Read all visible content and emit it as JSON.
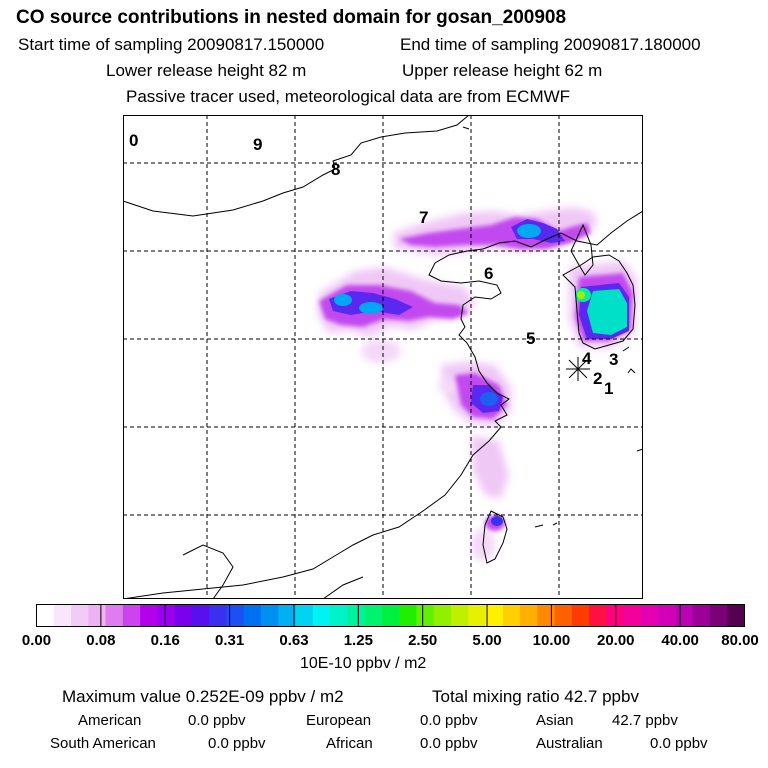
{
  "title": "CO  source contributions in nested domain for gosan_200908",
  "sampling": {
    "start_label": "Start time of sampling 20090817.150000",
    "end_label": "End time of sampling 20090817.180000"
  },
  "release": {
    "lower_label": "Lower release height   82 m",
    "upper_label": "Upper release height   62 m"
  },
  "note": "Passive tracer used, meteorological data are from ECMWF",
  "map": {
    "region_numbers": [
      "0",
      "9",
      "8",
      "7",
      "6",
      "5",
      "4",
      "3",
      "2",
      "1"
    ],
    "site_marker": "receptor-asterisk"
  },
  "colorbar": {
    "tick_labels": [
      "0.00",
      "0.08",
      "0.16",
      "0.31",
      "0.63",
      "1.25",
      "2.50",
      "5.00",
      "10.00",
      "20.00",
      "40.00",
      "80.00"
    ],
    "units": "10E-10 ppbv / m2",
    "colors": [
      "#ffffff",
      "#f8e6fa",
      "#f2ccf6",
      "#ecb2f3",
      "#e07cf0",
      "#cc44ee",
      "#b500ee",
      "#9900ee",
      "#7a00ee",
      "#5a10ee",
      "#3a30f0",
      "#1c50f2",
      "#0070f2",
      "#0090f2",
      "#00b0f2",
      "#00d4f2",
      "#00f2f2",
      "#00f2c8",
      "#00f29c",
      "#00f26e",
      "#00f040",
      "#20f000",
      "#60f000",
      "#90f000",
      "#c0f000",
      "#e6f000",
      "#fff000",
      "#ffd000",
      "#ffb000",
      "#ff8800",
      "#ff6000",
      "#ff3c00",
      "#ff1040",
      "#ff0080",
      "#f4009a",
      "#e400b0",
      "#d200b8",
      "#bc00b4",
      "#9c0096",
      "#7c0078",
      "#560052"
    ]
  },
  "summary": {
    "max_label": "Maximum value  0.252E-09 ppbv / m2",
    "total_label": "Total mixing ratio       42.7 ppbv",
    "regions": [
      {
        "name": "American",
        "value": "0.0 ppbv"
      },
      {
        "name": "European",
        "value": "0.0 ppbv"
      },
      {
        "name": "Asian",
        "value": "42.7 ppbv"
      },
      {
        "name": "South American",
        "value": "0.0 ppbv"
      },
      {
        "name": "African",
        "value": "0.0 ppbv"
      },
      {
        "name": "Australian",
        "value": "0.0 ppbv"
      }
    ]
  }
}
